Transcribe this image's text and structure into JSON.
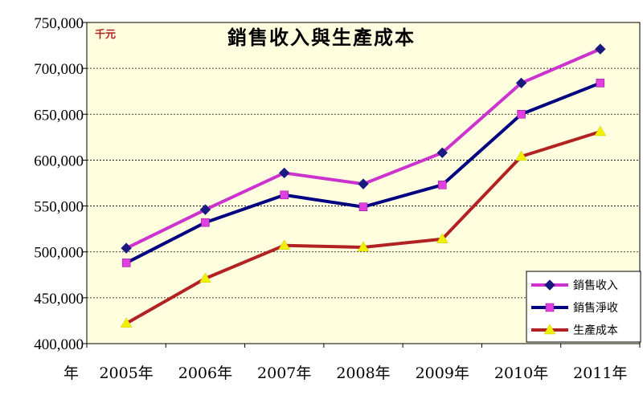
{
  "chart_data": {
    "type": "line",
    "title": "銷售收入與生產成本",
    "unit_label": "千元",
    "xlabel": "年",
    "ylabel": "",
    "ylim": [
      400000,
      750000
    ],
    "yticks": [
      400000,
      450000,
      500000,
      550000,
      600000,
      650000,
      700000,
      750000
    ],
    "ytick_labels": [
      "400,000",
      "450,000",
      "500,000",
      "550,000",
      "600,000",
      "650,000",
      "700,000",
      "750,000"
    ],
    "categories": [
      "2005年",
      "2006年",
      "2007年",
      "2008年",
      "2009年",
      "2010年",
      "2011年"
    ],
    "grid": true,
    "legend_position": "bottom-right",
    "series": [
      {
        "name": "銷售收入",
        "color": "#cc33cc",
        "marker": "diamond",
        "marker_color": "#1a1a80",
        "values": [
          504000,
          546000,
          586000,
          574000,
          608000,
          684000,
          721000
        ]
      },
      {
        "name": "銷售淨收",
        "color": "#000080",
        "marker": "square",
        "marker_color": "#e040e0",
        "values": [
          488000,
          532000,
          562000,
          549000,
          573000,
          650000,
          684000
        ]
      },
      {
        "name": "生產成本",
        "color": "#b22222",
        "marker": "triangle",
        "marker_color": "#f0f000",
        "values": [
          422000,
          471000,
          507000,
          505000,
          514000,
          604000,
          631000
        ]
      }
    ]
  }
}
